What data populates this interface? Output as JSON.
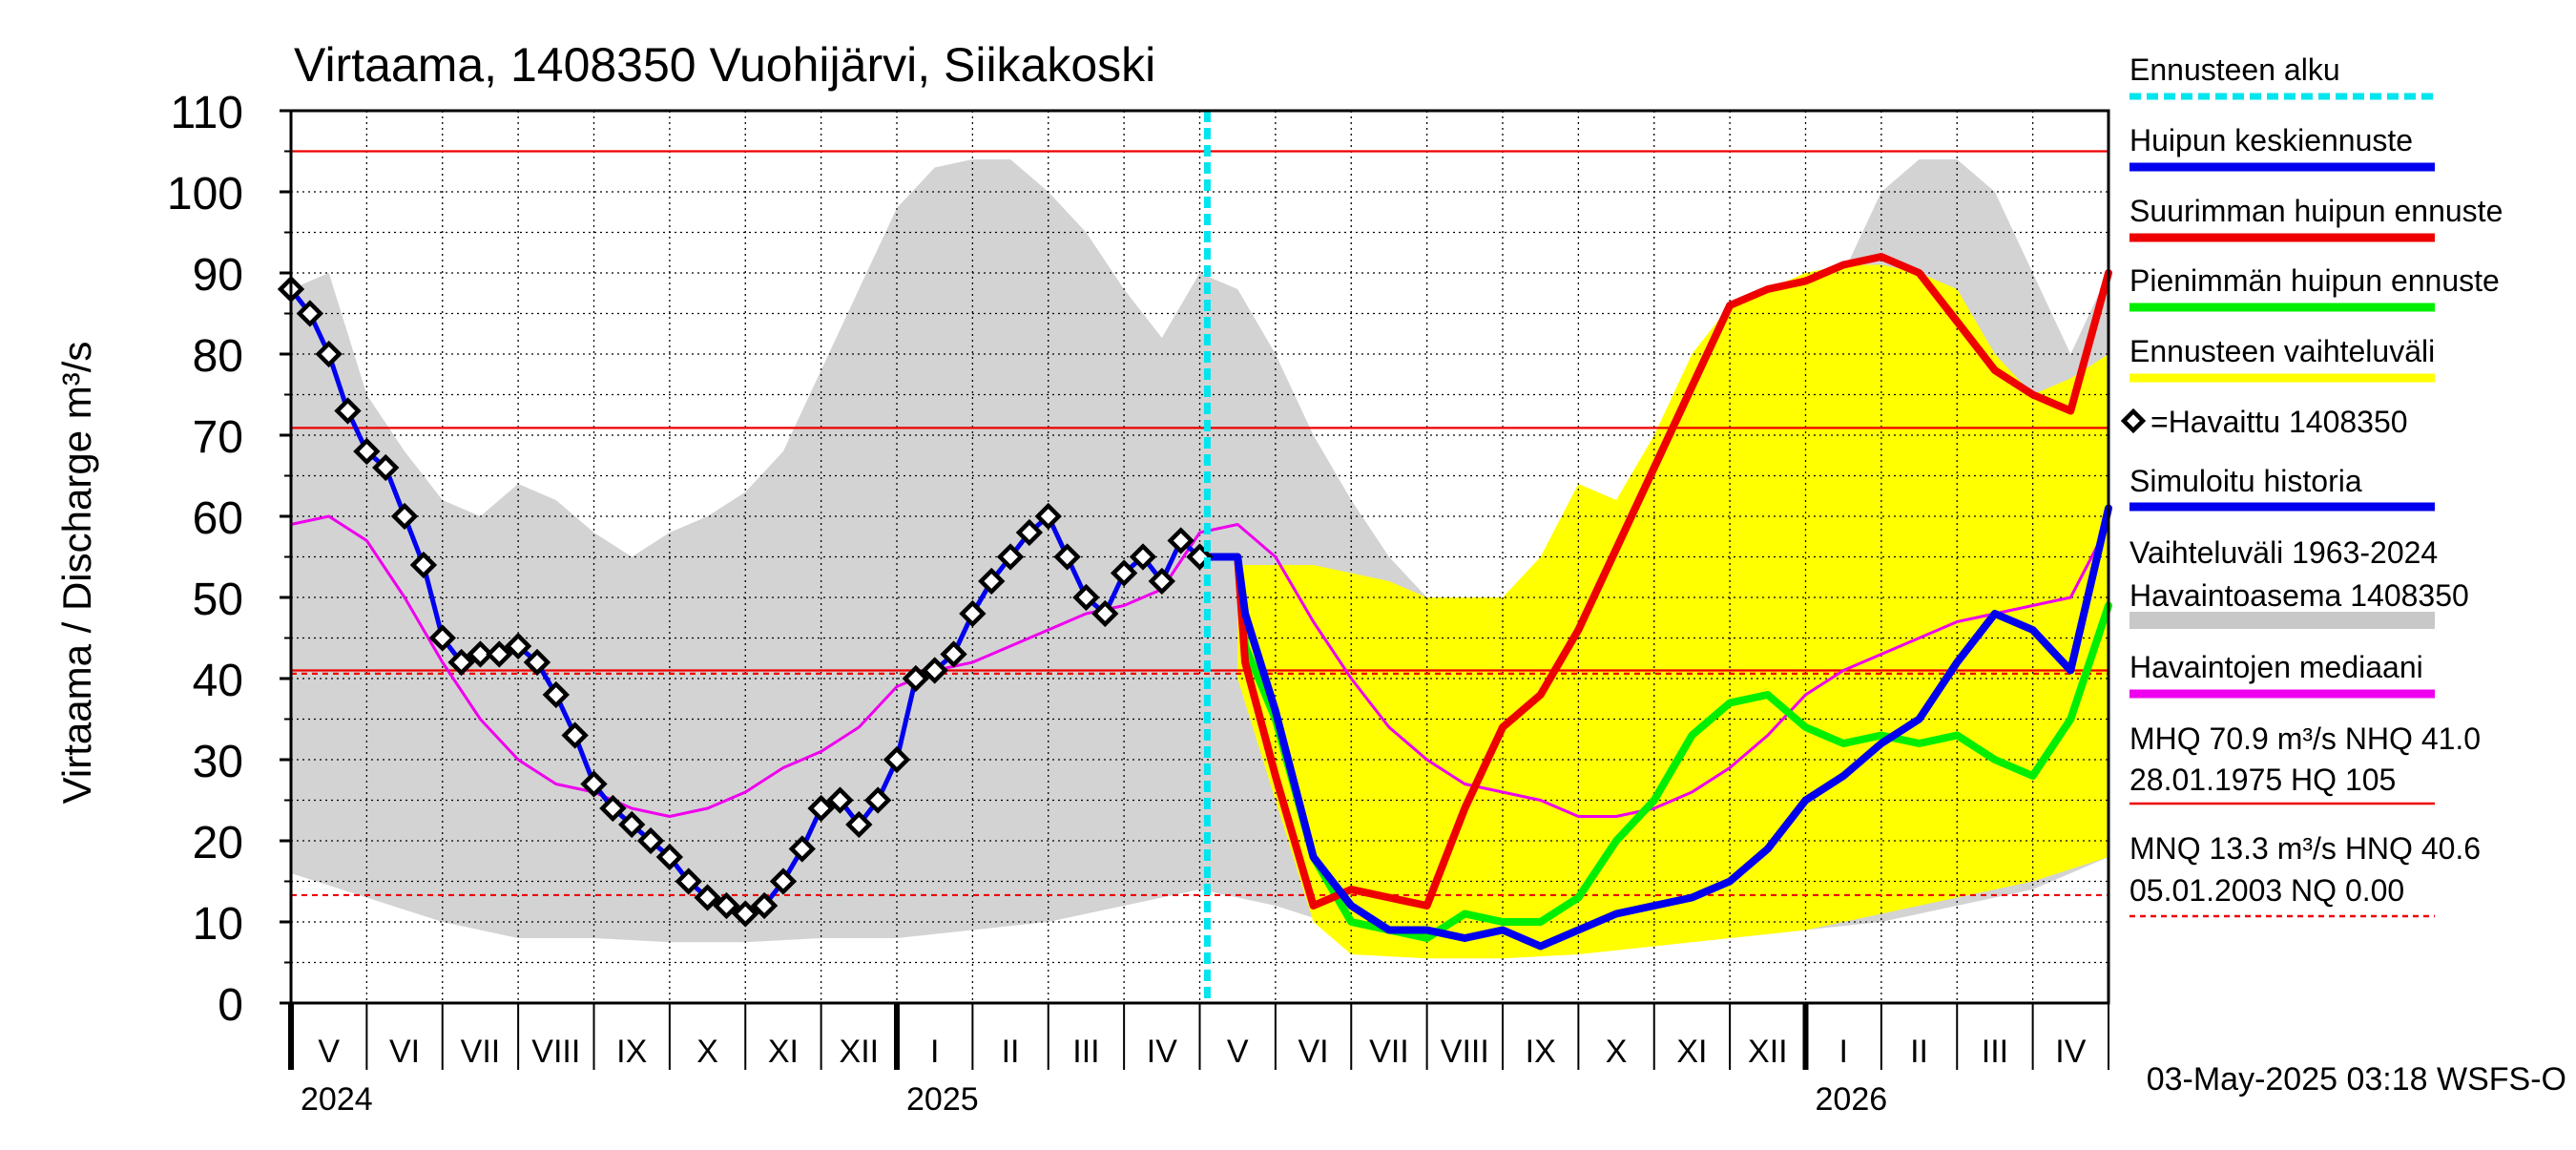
{
  "chart_data": {
    "type": "line",
    "title": "Virtaama, 1408350 Vuohijärvi, Siikakoski",
    "ylabel": "Virtaama / Discharge    m³/s",
    "ylim": [
      0,
      110
    ],
    "yticks": [
      0,
      10,
      20,
      30,
      40,
      50,
      60,
      70,
      80,
      90,
      100,
      110
    ],
    "xlim_month_index": [
      0,
      24
    ],
    "month_labels": [
      "V",
      "VI",
      "VII",
      "VIII",
      "IX",
      "X",
      "XI",
      "XII",
      "I",
      "II",
      "III",
      "IV",
      "V",
      "VI",
      "VII",
      "VIII",
      "IX",
      "X",
      "XI",
      "XII",
      "I",
      "II",
      "III",
      "IV"
    ],
    "year_labels": [
      {
        "label": "2024",
        "month_index": 0
      },
      {
        "label": "2025",
        "month_index": 8
      },
      {
        "label": "2026",
        "month_index": 20
      }
    ],
    "forecast_start_month_index": 12.1,
    "reference_lines": [
      {
        "name": "HQ",
        "value": 105,
        "style": "solid"
      },
      {
        "name": "MHQ",
        "value": 70.9,
        "style": "solid"
      },
      {
        "name": "NHQ",
        "value": 41.0,
        "style": "solid"
      },
      {
        "name": "HNQ",
        "value": 40.6,
        "style": "dashed"
      },
      {
        "name": "MNQ",
        "value": 13.3,
        "style": "dashed"
      },
      {
        "name": "NQ",
        "value": 0.0,
        "style": "dashed"
      }
    ],
    "legend": [
      {
        "label": "Ennusteen alku",
        "color": "#00e5ee",
        "style": "dashed"
      },
      {
        "label": "Huipun keskiennuste",
        "color": "#0000ee",
        "style": "solid"
      },
      {
        "label": "Suurimman huipun ennuste",
        "color": "#ee0000",
        "style": "solid"
      },
      {
        "label": "Pienimmän huipun ennuste",
        "color": "#00ee00",
        "style": "solid"
      },
      {
        "label": "Ennusteen vaihteluväli",
        "color": "#ffff00",
        "style": "solid"
      },
      {
        "label": "=Havaittu 1408350",
        "color": "#000000",
        "style": "marker"
      },
      {
        "label": "Simuloitu historia",
        "color": "#0000ee",
        "style": "solid"
      },
      {
        "label": "Vaihteluväli 1963-2024",
        "color": "#c8c8c8",
        "style": "solid"
      },
      {
        "label": " Havaintoasema 1408350",
        "color": "#c8c8c8",
        "style": "none"
      },
      {
        "label": "Havaintojen mediaani",
        "color": "#ee00ee",
        "style": "solid"
      },
      {
        "label": "MHQ 70.9 m³/s NHQ 41.0",
        "color": "#ee0000",
        "style": "none"
      },
      {
        "label": "28.01.1975 HQ  105",
        "color": "#ee0000",
        "style": "solid"
      },
      {
        "label": "MNQ 13.3 m³/s HNQ 40.6",
        "color": "#ee0000",
        "style": "none"
      },
      {
        "label": "05.01.2003 NQ 0.00",
        "color": "#ee0000",
        "style": "dashed"
      }
    ],
    "series": [
      {
        "name": "Vaihteluväli 1963-2024 (upper)",
        "color": "#d3d3d3",
        "x": [
          0,
          0.5,
          1,
          1.5,
          2,
          2.5,
          3,
          3.5,
          4,
          4.5,
          5,
          5.5,
          6,
          6.5,
          7,
          7.5,
          8,
          8.5,
          9,
          9.5,
          10,
          10.5,
          11,
          11.5,
          12,
          12.5,
          13,
          13.5,
          14,
          14.5,
          15,
          15.5,
          16,
          16.5,
          17,
          17.5,
          18,
          18.5,
          19,
          19.5,
          20,
          20.5,
          21,
          21.5,
          22,
          22.5,
          23,
          23.5,
          24
        ],
        "y": [
          88,
          90,
          75,
          68,
          62,
          60,
          64,
          62,
          58,
          55,
          58,
          60,
          63,
          68,
          78,
          88,
          98,
          103,
          104,
          104,
          100,
          95,
          88,
          82,
          90,
          88,
          80,
          70,
          62,
          55,
          50,
          47,
          48,
          50,
          55,
          60,
          62,
          65,
          68,
          72,
          78,
          90,
          100,
          104,
          104,
          100,
          90,
          80,
          90
        ]
      },
      {
        "name": "Vaihteluväli 1963-2024 (lower)",
        "color": "#d3d3d3",
        "x": [
          0,
          1,
          2,
          3,
          4,
          5,
          6,
          7,
          8,
          9,
          10,
          11,
          12,
          13,
          14,
          15,
          16,
          17,
          18,
          19,
          20,
          21,
          22,
          23,
          24
        ],
        "y": [
          16,
          13,
          10,
          8,
          8,
          7.5,
          7.5,
          8,
          8,
          9,
          10,
          12,
          14,
          12,
          9,
          7.5,
          7,
          7,
          7.5,
          8,
          9,
          10,
          12,
          14,
          18
        ]
      },
      {
        "name": "Ennusteen vaihteluväli (upper)",
        "color": "#ffff00",
        "x": [
          12.5,
          13,
          13.5,
          14,
          14.5,
          15,
          15.5,
          16,
          16.5,
          17,
          17.5,
          18,
          18.5,
          19,
          19.5,
          20,
          20.5,
          21,
          21.5,
          22,
          22.5,
          23,
          23.5,
          24
        ],
        "y": [
          54,
          54,
          54,
          53,
          52,
          50,
          50,
          50,
          55,
          64,
          62,
          70,
          80,
          86,
          88,
          90,
          91,
          91,
          90,
          88,
          80,
          75,
          77,
          80
        ]
      },
      {
        "name": "Ennusteen vaihteluväli (lower)",
        "color": "#ffff00",
        "x": [
          12.5,
          13,
          13.5,
          14,
          15,
          16,
          17,
          18,
          19,
          20,
          21,
          22,
          23,
          24
        ],
        "y": [
          40,
          25,
          10,
          6,
          5.5,
          5.5,
          6,
          7,
          8,
          9,
          11,
          13,
          15,
          18
        ]
      },
      {
        "name": "Havaintojen mediaani",
        "color": "#ee00ee",
        "x": [
          0,
          0.5,
          1,
          1.5,
          2,
          2.5,
          3,
          3.5,
          4,
          4.5,
          5,
          5.5,
          6,
          6.5,
          7,
          7.5,
          8,
          8.5,
          9,
          9.5,
          10,
          10.5,
          11,
          11.5,
          12,
          12.5,
          13,
          13.5,
          14,
          14.5,
          15,
          15.5,
          16,
          16.5,
          17,
          17.5,
          18,
          18.5,
          19,
          19.5,
          20,
          20.5,
          21,
          21.5,
          22,
          22.5,
          23,
          23.5,
          24
        ],
        "y": [
          59,
          60,
          57,
          50,
          42,
          35,
          30,
          27,
          26,
          24,
          23,
          24,
          26,
          29,
          31,
          34,
          39,
          41,
          42,
          44,
          46,
          48,
          49,
          51,
          58,
          59,
          55,
          47,
          40,
          34,
          30,
          27,
          26,
          25,
          23,
          23,
          24,
          26,
          29,
          33,
          38,
          41,
          43,
          45,
          47,
          48,
          49,
          50,
          59
        ]
      },
      {
        "name": "Havaittu 1408350",
        "color": "#000000",
        "x": [
          0,
          0.25,
          0.5,
          0.75,
          1,
          1.25,
          1.5,
          1.75,
          2,
          2.25,
          2.5,
          2.75,
          3,
          3.25,
          3.5,
          3.75,
          4,
          4.25,
          4.5,
          4.75,
          5,
          5.25,
          5.5,
          5.75,
          6,
          6.25,
          6.5,
          6.75,
          7,
          7.25,
          7.5,
          7.75,
          8,
          8.25,
          8.5,
          8.75,
          9,
          9.25,
          9.5,
          9.75,
          10,
          10.25,
          10.5,
          10.75,
          11,
          11.25,
          11.5,
          11.75,
          12
        ],
        "y": [
          88,
          85,
          80,
          73,
          68,
          66,
          60,
          54,
          45,
          42,
          43,
          43,
          44,
          42,
          38,
          33,
          27,
          24,
          22,
          20,
          18,
          15,
          13,
          12,
          11,
          12,
          15,
          19,
          24,
          25,
          22,
          25,
          30,
          40,
          41,
          43,
          48,
          52,
          55,
          58,
          60,
          55,
          50,
          48,
          53,
          55,
          52,
          57,
          55
        ]
      },
      {
        "name": "Simuloitu historia",
        "color": "#0000ee",
        "x": [
          0,
          0.25,
          0.5,
          0.75,
          1,
          1.25,
          1.5,
          1.75,
          2,
          2.25,
          2.5,
          2.75,
          3,
          3.25,
          3.5,
          3.75,
          4,
          4.25,
          4.5,
          4.75,
          5,
          5.25,
          5.5,
          5.75,
          6,
          6.25,
          6.5,
          6.75,
          7,
          7.25,
          7.5,
          7.75,
          8,
          8.25,
          8.5,
          8.75,
          9,
          9.25,
          9.5,
          9.75,
          10,
          10.25,
          10.5,
          10.75,
          11,
          11.25,
          11.5,
          11.75,
          12,
          12.1
        ],
        "y": [
          88,
          85,
          80,
          73,
          68,
          66,
          60,
          54,
          45,
          42,
          43,
          43,
          44,
          42,
          38,
          33,
          27,
          24,
          22,
          20,
          18,
          15,
          13,
          12,
          11,
          12,
          15,
          19,
          24,
          25,
          22,
          25,
          30,
          40,
          41,
          43,
          48,
          52,
          55,
          58,
          60,
          55,
          50,
          48,
          53,
          55,
          52,
          57,
          55,
          55
        ]
      },
      {
        "name": "Suurimman huipun ennuste",
        "color": "#ee0000",
        "x": [
          12.1,
          12.5,
          12.6,
          13,
          13.5,
          14,
          14.5,
          15,
          15.5,
          16,
          16.5,
          17,
          17.5,
          18,
          18.5,
          19,
          19.5,
          20,
          20.5,
          21,
          21.5,
          22,
          22.5,
          23,
          23.5,
          24
        ],
        "y": [
          55,
          55,
          42,
          28,
          12,
          14,
          13,
          12,
          24,
          34,
          38,
          46,
          56,
          66,
          76,
          86,
          88,
          89,
          91,
          92,
          90,
          84,
          78,
          75,
          73,
          90
        ]
      },
      {
        "name": "Pienimmän huipun ennuste",
        "color": "#00ee00",
        "x": [
          12.1,
          12.5,
          12.6,
          13,
          13.5,
          14,
          14.5,
          15,
          15.5,
          16,
          16.5,
          17,
          17.5,
          18,
          18.5,
          19,
          19.5,
          20,
          20.5,
          21,
          21.5,
          22,
          22.5,
          23,
          23.5,
          24
        ],
        "y": [
          55,
          55,
          44,
          35,
          18,
          10,
          9,
          8,
          11,
          10,
          10,
          13,
          20,
          25,
          33,
          37,
          38,
          34,
          32,
          33,
          32,
          33,
          30,
          28,
          35,
          49
        ]
      },
      {
        "name": "Huipun keskiennuste",
        "color": "#0000ee",
        "x": [
          12.1,
          12.5,
          12.6,
          13,
          13.5,
          14,
          14.5,
          15,
          15.5,
          16,
          16.5,
          17,
          17.5,
          18,
          18.5,
          19,
          19.5,
          20,
          20.5,
          21,
          21.5,
          22,
          22.5,
          23,
          23.5,
          24
        ],
        "y": [
          55,
          55,
          48,
          36,
          18,
          12,
          9,
          9,
          8,
          9,
          7,
          9,
          11,
          12,
          13,
          15,
          19,
          25,
          28,
          32,
          35,
          42,
          48,
          46,
          41,
          61
        ]
      }
    ]
  },
  "footer": {
    "timestamp": "03-May-2025 03:18 WSFS-O"
  }
}
